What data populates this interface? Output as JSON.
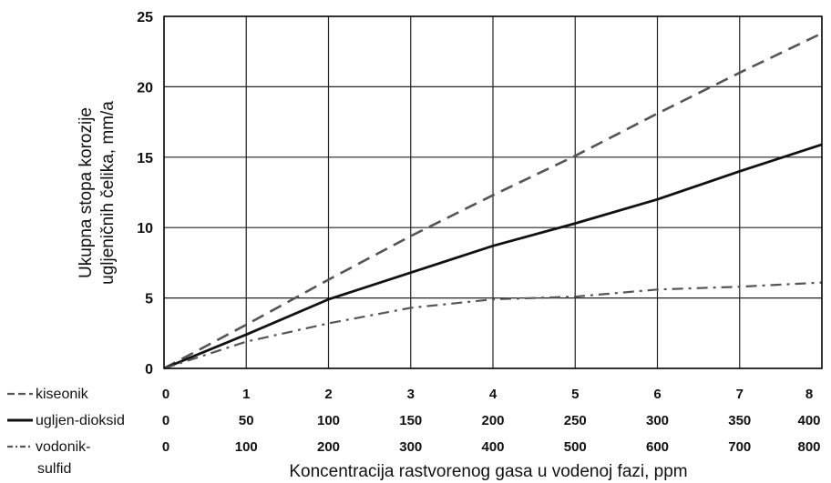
{
  "chart_data": {
    "type": "line",
    "title": "",
    "ylabel_lines": [
      "Ukupna stopa korozije",
      "ugljeničnih čelika, mm/a"
    ],
    "xlabel": "Koncentracija rastvorenog gasa u vodenoj fazi, ppm",
    "ylim": [
      0,
      25
    ],
    "yticks": [
      0,
      5,
      10,
      15,
      20,
      25
    ],
    "xlim": [
      0,
      8
    ],
    "grid": true,
    "x_axes": [
      {
        "name": "kiseonik",
        "ticks": [
          "0",
          "1",
          "2",
          "3",
          "4",
          "5",
          "6",
          "7",
          "8"
        ]
      },
      {
        "name": "ugljen-dioksid",
        "ticks": [
          "0",
          "50",
          "100",
          "150",
          "200",
          "250",
          "300",
          "350",
          "400"
        ]
      },
      {
        "name": "vodonik-sulfid",
        "ticks": [
          "0",
          "100",
          "200",
          "300",
          "400",
          "500",
          "600",
          "700",
          "800"
        ]
      }
    ],
    "series": [
      {
        "name": "kiseonik",
        "style": "dashed",
        "color": "#555555",
        "x": [
          0,
          1,
          2,
          3,
          4,
          5,
          6,
          7,
          8
        ],
        "y": [
          0,
          3.1,
          6.3,
          9.4,
          12.3,
          15.1,
          18.1,
          21.0,
          23.8
        ]
      },
      {
        "name": "ugljen-dioksid",
        "style": "solid",
        "color": "#111111",
        "x": [
          0,
          1,
          2,
          3,
          4,
          5,
          6,
          7,
          8
        ],
        "y": [
          0,
          2.4,
          4.9,
          6.8,
          8.7,
          10.3,
          12.0,
          14.0,
          15.9
        ]
      },
      {
        "name": "vodonik-sulfid",
        "style": "dashdot",
        "color": "#555555",
        "x": [
          0,
          1,
          2,
          3,
          4,
          5,
          6,
          7,
          8
        ],
        "y": [
          0,
          1.9,
          3.2,
          4.3,
          4.9,
          5.1,
          5.6,
          5.8,
          6.1
        ]
      }
    ],
    "legend": [
      {
        "label": "kiseonik",
        "style": "dashed"
      },
      {
        "label": "ugljen-dioksid",
        "style": "solid"
      },
      {
        "label_lines": [
          "vodonik-",
          "sulfid"
        ],
        "style": "dashdot"
      }
    ]
  }
}
